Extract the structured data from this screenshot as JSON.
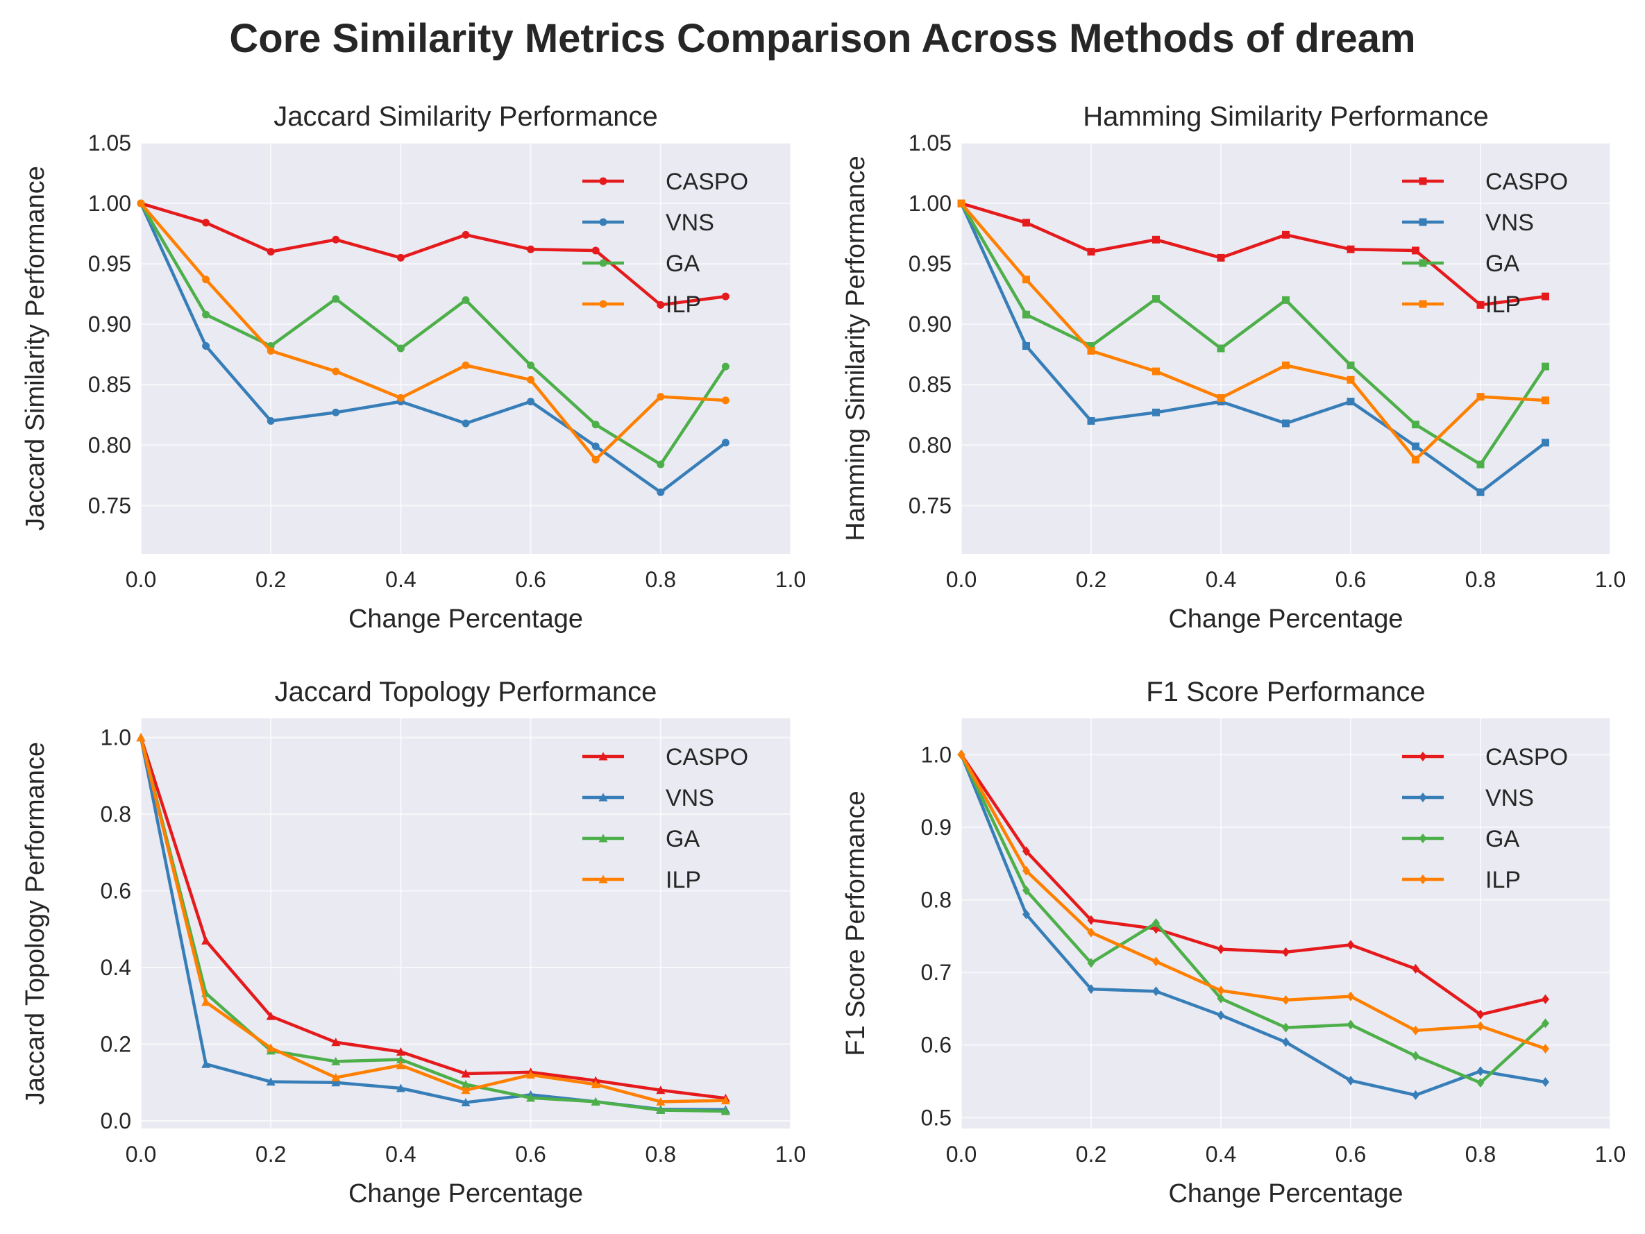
{
  "figure": {
    "suptitle": "Core Similarity Metrics Comparison Across Methods of dream"
  },
  "series_colors": {
    "CASPO": "#e41a1c",
    "VNS": "#377eb8",
    "GA": "#4daf4a",
    "ILP": "#ff7f00"
  },
  "chart_data": [
    {
      "type": "line",
      "title": "Jaccard Similarity Performance",
      "xlabel": "Change Percentage",
      "ylabel": "Jaccard Similarity Performance",
      "xlim": [
        0,
        1.0
      ],
      "ylim": [
        0.71,
        1.05
      ],
      "xticks": [
        "0.0",
        "0.2",
        "0.4",
        "0.6",
        "0.8",
        "1.0"
      ],
      "yticks": [
        "0.75",
        "0.80",
        "0.85",
        "0.90",
        "0.95",
        "1.00",
        "1.05"
      ],
      "marker": "circle",
      "grid": true,
      "legend": "top-right",
      "x": [
        0.0,
        0.1,
        0.2,
        0.3,
        0.4,
        0.5,
        0.6,
        0.7,
        0.8,
        0.9
      ],
      "series": [
        {
          "name": "CASPO",
          "values": [
            1.0,
            0.984,
            0.96,
            0.97,
            0.955,
            0.974,
            0.962,
            0.961,
            0.916,
            0.923
          ]
        },
        {
          "name": "VNS",
          "values": [
            1.0,
            0.882,
            0.82,
            0.827,
            0.836,
            0.818,
            0.836,
            0.799,
            0.761,
            0.802
          ]
        },
        {
          "name": "GA",
          "values": [
            1.0,
            0.908,
            0.882,
            0.921,
            0.88,
            0.92,
            0.866,
            0.817,
            0.784,
            0.865
          ]
        },
        {
          "name": "ILP",
          "values": [
            1.0,
            0.937,
            0.878,
            0.861,
            0.839,
            0.866,
            0.854,
            0.788,
            0.84,
            0.837
          ]
        }
      ]
    },
    {
      "type": "line",
      "title": "Hamming Similarity Performance",
      "xlabel": "Change Percentage",
      "ylabel": "Hamming Similarity Performance",
      "xlim": [
        0,
        1.0
      ],
      "ylim": [
        0.71,
        1.05
      ],
      "xticks": [
        "0.0",
        "0.2",
        "0.4",
        "0.6",
        "0.8",
        "1.0"
      ],
      "yticks": [
        "0.75",
        "0.80",
        "0.85",
        "0.90",
        "0.95",
        "1.00",
        "1.05"
      ],
      "marker": "square",
      "grid": true,
      "legend": "top-right",
      "x": [
        0.0,
        0.1,
        0.2,
        0.3,
        0.4,
        0.5,
        0.6,
        0.7,
        0.8,
        0.9
      ],
      "series": [
        {
          "name": "CASPO",
          "values": [
            1.0,
            0.984,
            0.96,
            0.97,
            0.955,
            0.974,
            0.962,
            0.961,
            0.916,
            0.923
          ]
        },
        {
          "name": "VNS",
          "values": [
            1.0,
            0.882,
            0.82,
            0.827,
            0.836,
            0.818,
            0.836,
            0.799,
            0.761,
            0.802
          ]
        },
        {
          "name": "GA",
          "values": [
            1.0,
            0.908,
            0.882,
            0.921,
            0.88,
            0.92,
            0.866,
            0.817,
            0.784,
            0.865
          ]
        },
        {
          "name": "ILP",
          "values": [
            1.0,
            0.937,
            0.878,
            0.861,
            0.839,
            0.866,
            0.854,
            0.788,
            0.84,
            0.837
          ]
        }
      ]
    },
    {
      "type": "line",
      "title": "Jaccard Topology Performance",
      "xlabel": "Change Percentage",
      "ylabel": "Jaccard Topology Performance",
      "xlim": [
        0,
        1.0
      ],
      "ylim": [
        -0.02,
        1.05
      ],
      "xticks": [
        "0.0",
        "0.2",
        "0.4",
        "0.6",
        "0.8",
        "1.0"
      ],
      "yticks": [
        "0.0",
        "0.2",
        "0.4",
        "0.6",
        "0.8",
        "1.0"
      ],
      "marker": "triangle",
      "grid": true,
      "legend": "top-right",
      "x": [
        0.0,
        0.1,
        0.2,
        0.3,
        0.4,
        0.5,
        0.6,
        0.7,
        0.8,
        0.9
      ],
      "series": [
        {
          "name": "CASPO",
          "values": [
            1.0,
            0.47,
            0.273,
            0.205,
            0.18,
            0.123,
            0.127,
            0.105,
            0.08,
            0.059
          ]
        },
        {
          "name": "VNS",
          "values": [
            1.0,
            0.148,
            0.102,
            0.1,
            0.085,
            0.048,
            0.068,
            0.05,
            0.03,
            0.029
          ]
        },
        {
          "name": "GA",
          "values": [
            1.0,
            0.333,
            0.183,
            0.155,
            0.16,
            0.095,
            0.06,
            0.05,
            0.028,
            0.025
          ]
        },
        {
          "name": "ILP",
          "values": [
            1.0,
            0.31,
            0.19,
            0.113,
            0.145,
            0.08,
            0.12,
            0.095,
            0.05,
            0.053
          ]
        }
      ]
    },
    {
      "type": "line",
      "title": "F1 Score Performance",
      "xlabel": "Change Percentage",
      "ylabel": "F1 Score Performance",
      "xlim": [
        0,
        1.0
      ],
      "ylim": [
        0.485,
        1.05
      ],
      "xticks": [
        "0.0",
        "0.2",
        "0.4",
        "0.6",
        "0.8",
        "1.0"
      ],
      "yticks": [
        "0.5",
        "0.6",
        "0.7",
        "0.8",
        "0.9",
        "1.0"
      ],
      "marker": "diamond",
      "grid": true,
      "legend": "top-right",
      "x": [
        0.0,
        0.1,
        0.2,
        0.3,
        0.4,
        0.5,
        0.6,
        0.7,
        0.8,
        0.9
      ],
      "series": [
        {
          "name": "CASPO",
          "values": [
            1.0,
            0.867,
            0.772,
            0.76,
            0.732,
            0.728,
            0.738,
            0.705,
            0.642,
            0.663
          ]
        },
        {
          "name": "VNS",
          "values": [
            1.0,
            0.78,
            0.677,
            0.674,
            0.641,
            0.604,
            0.551,
            0.531,
            0.564,
            0.549
          ]
        },
        {
          "name": "GA",
          "values": [
            1.0,
            0.813,
            0.713,
            0.768,
            0.664,
            0.624,
            0.628,
            0.585,
            0.548,
            0.63
          ]
        },
        {
          "name": "ILP",
          "values": [
            1.0,
            0.84,
            0.755,
            0.715,
            0.675,
            0.662,
            0.667,
            0.62,
            0.626,
            0.595
          ]
        }
      ]
    }
  ]
}
